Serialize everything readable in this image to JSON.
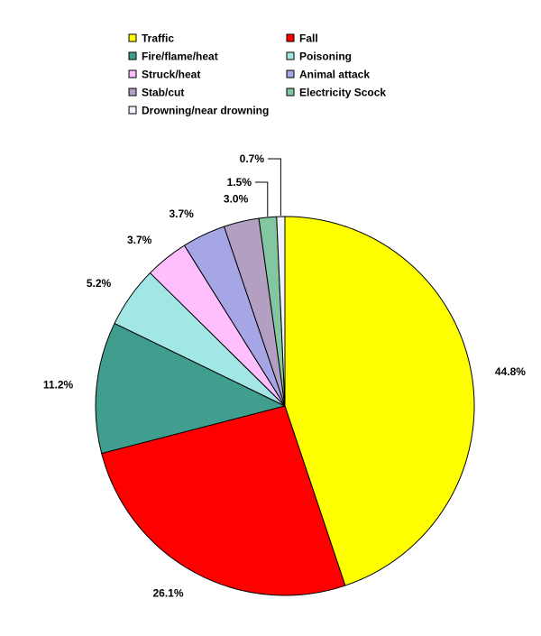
{
  "chart_data": {
    "type": "pie",
    "title": "",
    "legend_position": "top",
    "slices": [
      {
        "label": "Traffic",
        "value": 44.8,
        "value_label": "44.8%",
        "color": "#ffff00"
      },
      {
        "label": "Fall",
        "value": 26.1,
        "value_label": "26.1%",
        "color": "#ff0000"
      },
      {
        "label": "Fire/flame/heat",
        "value": 11.2,
        "value_label": "11.2%",
        "color": "#3f9e8e"
      },
      {
        "label": "Poisoning",
        "value": 5.2,
        "value_label": "5.2%",
        "color": "#a2e6e6"
      },
      {
        "label": "Struck/heat",
        "value": 3.7,
        "value_label": "3.7%",
        "color": "#ffbfff"
      },
      {
        "label": "Animal attack",
        "value": 3.7,
        "value_label": "3.7%",
        "color": "#a6a6e6"
      },
      {
        "label": "Stab/cut",
        "value": 3.0,
        "value_label": "3.0%",
        "color": "#b39fc2"
      },
      {
        "label": "Electricity Scock",
        "value": 1.5,
        "value_label": "1.5%",
        "color": "#82c79f"
      },
      {
        "label": "Drowning/near drowning",
        "value": 0.7,
        "value_label": "0.7%",
        "color": "#f2f2ff"
      }
    ]
  }
}
